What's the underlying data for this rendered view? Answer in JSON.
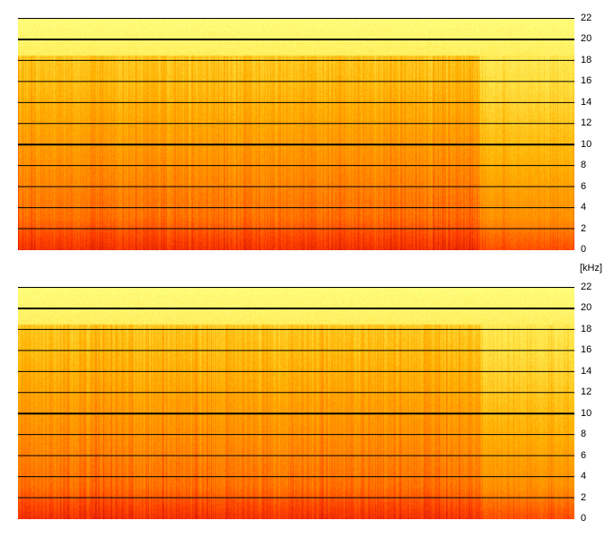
{
  "chart_data": [
    {
      "type": "heatmap",
      "title": "",
      "xlabel": "",
      "ylabel": "",
      "y_unit": "[kHz]",
      "ylim": [
        0,
        22
      ],
      "y_ticks": [
        "0",
        "2",
        "4",
        "6",
        "8",
        "10",
        "12",
        "14",
        "16",
        "18",
        "20",
        "22"
      ],
      "major_gridlines": [
        10,
        20
      ],
      "minor_gridlines": [
        2,
        4,
        6,
        8,
        12,
        14,
        16,
        18,
        22
      ],
      "colormap": [
        "#d81800",
        "#ff4000",
        "#ff8000",
        "#ffb000",
        "#ffe040",
        "#ffff80"
      ],
      "activity_end_fraction": 0.83,
      "grid": true
    },
    {
      "type": "heatmap",
      "title": "",
      "xlabel": "",
      "ylabel": "",
      "ylim": [
        0,
        22
      ],
      "y_ticks": [
        "0",
        "2",
        "4",
        "6",
        "8",
        "10",
        "12",
        "14",
        "16",
        "18",
        "20",
        "22"
      ],
      "major_gridlines": [
        10,
        20
      ],
      "minor_gridlines": [
        2,
        4,
        6,
        8,
        12,
        14,
        16,
        18,
        22
      ],
      "colormap": [
        "#d81800",
        "#ff4000",
        "#ff8000",
        "#ffb000",
        "#ffe040",
        "#ffff80"
      ],
      "activity_end_fraction": 0.83,
      "grid": true
    }
  ]
}
